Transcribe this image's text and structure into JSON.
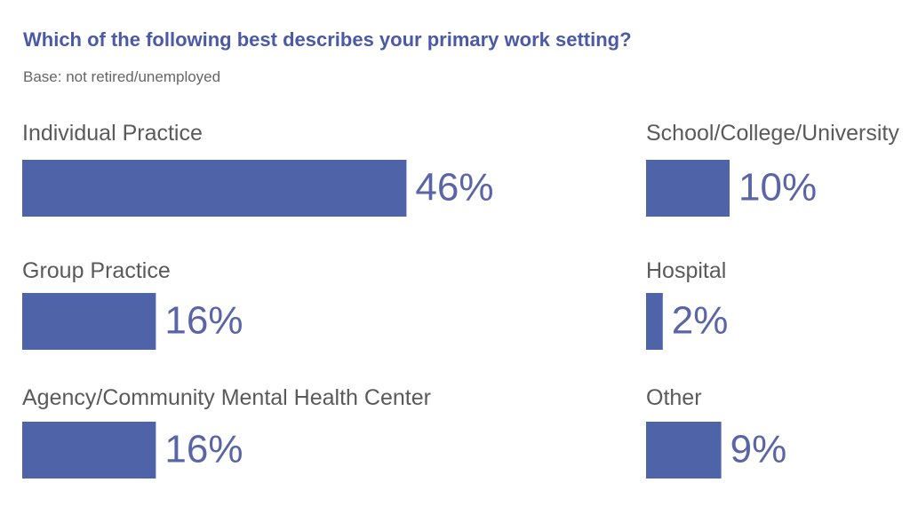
{
  "chart_data": {
    "type": "bar",
    "title": "Which of the following best describes your primary work setting?",
    "subtitle": "Base: not retired/unemployed",
    "categories": [
      "Individual Practice",
      "Group Practice",
      "Agency/Community Mental Health Center",
      "School/College/University",
      "Hospital",
      "Other"
    ],
    "values": [
      46,
      16,
      16,
      10,
      2,
      9
    ],
    "value_labels": [
      "46%",
      "16%",
      "16%",
      "10%",
      "2%",
      "9%"
    ],
    "color": "#4f63a9"
  }
}
